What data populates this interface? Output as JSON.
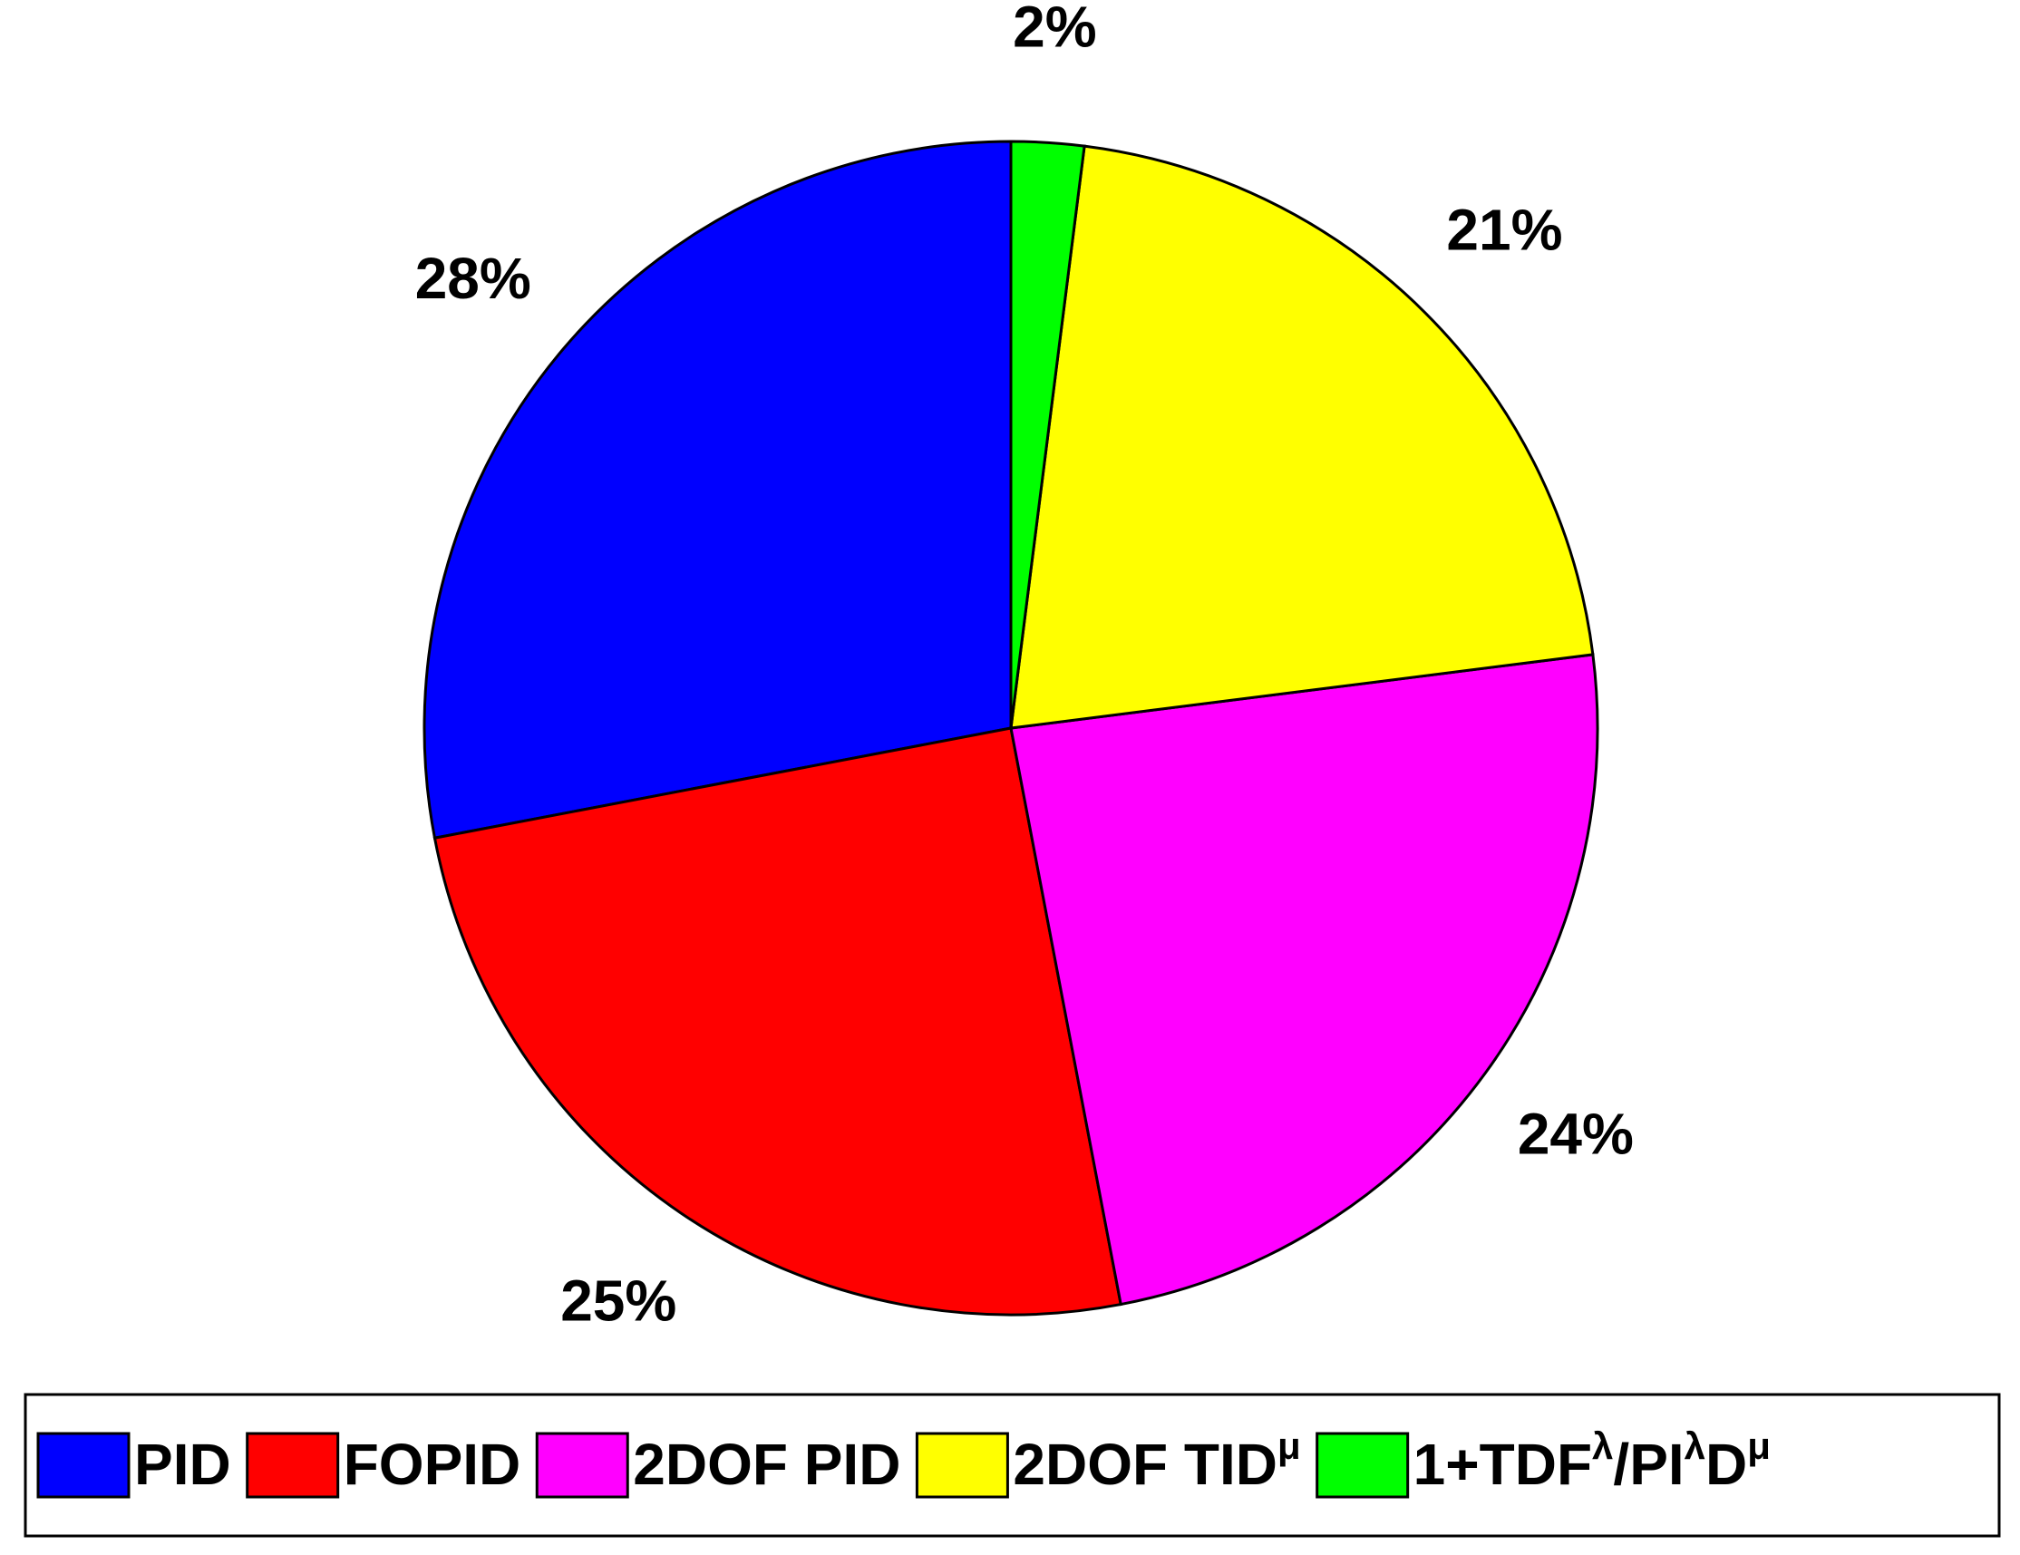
{
  "chart_data": {
    "type": "pie",
    "categories": [
      "PID",
      "FOPID",
      "2DOF PID",
      "2DOF TIDμ",
      "1+TDFλ/PIλDμ"
    ],
    "values": [
      28,
      25,
      24,
      21,
      2
    ],
    "value_labels": [
      "28%",
      "25%",
      "24%",
      "21%",
      "2%"
    ],
    "colors": [
      "#0000ff",
      "#ff0000",
      "#ff00ff",
      "#ffff00",
      "#00ff00"
    ],
    "legend": "bottom"
  }
}
